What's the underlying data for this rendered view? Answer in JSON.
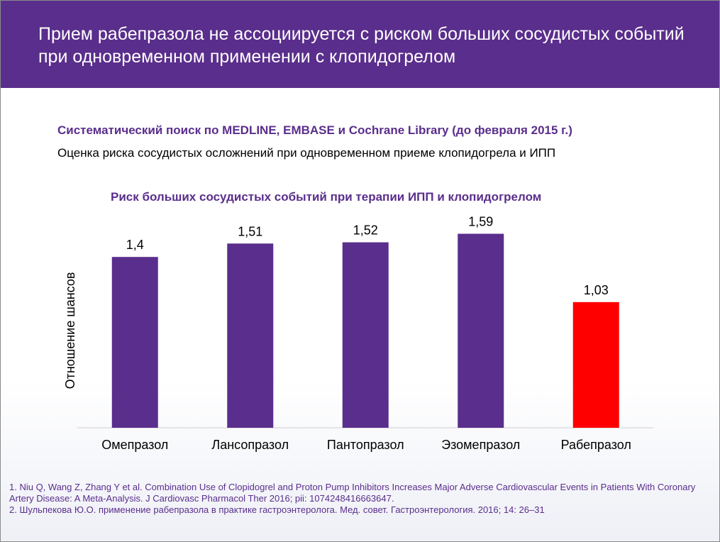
{
  "header": {
    "title": "Прием рабепразола не ассоциируется с риском больших сосудистых событий при одновременном применении с клопидогрелом"
  },
  "search": {
    "heading": "Систематический поиск по MEDLINE, EMBASE и Cochrane Library (до февраля 2015 г.)",
    "description": "Оценка риска сосудистых осложнений при одновременном приеме клопидогрела и ИПП"
  },
  "chart_data": {
    "type": "bar",
    "title": "Риск больших сосудистых событий при терапии ИПП и клопидогрелом",
    "ylabel": "Отношение шансов",
    "xlabel": "",
    "categories": [
      "Омепразол",
      "Лансопразол",
      "Пантопразол",
      "Эзомепразол",
      "Рабепразол"
    ],
    "values": [
      1.4,
      1.51,
      1.52,
      1.59,
      1.03
    ],
    "value_labels": [
      "1,4",
      "1,51",
      "1,52",
      "1,59",
      "1,03"
    ],
    "colors": [
      "#5a2e8c",
      "#5a2e8c",
      "#5a2e8c",
      "#5a2e8c",
      "#ff0000"
    ],
    "ylim": [
      0,
      1.75
    ],
    "grid": false,
    "legend": "none"
  },
  "footnotes": [
    "1. Niu Q, Wang Z, Zhang Y et al. Combination Use of Clopidogrel and Proton Pump Inhibitors Increases Major Adverse Cardiovascular Events in Patients With Coronary Artery Disease: A Meta-Analysis. J Cardiovasc Pharmacol Ther 2016; pii: 1074248416663647.",
    "2. Шульпекова Ю.О. применение рабепразола в практике гастроэнтеролога. Мед. совет. Гастроэнтерология. 2016; 14: 26–31"
  ]
}
